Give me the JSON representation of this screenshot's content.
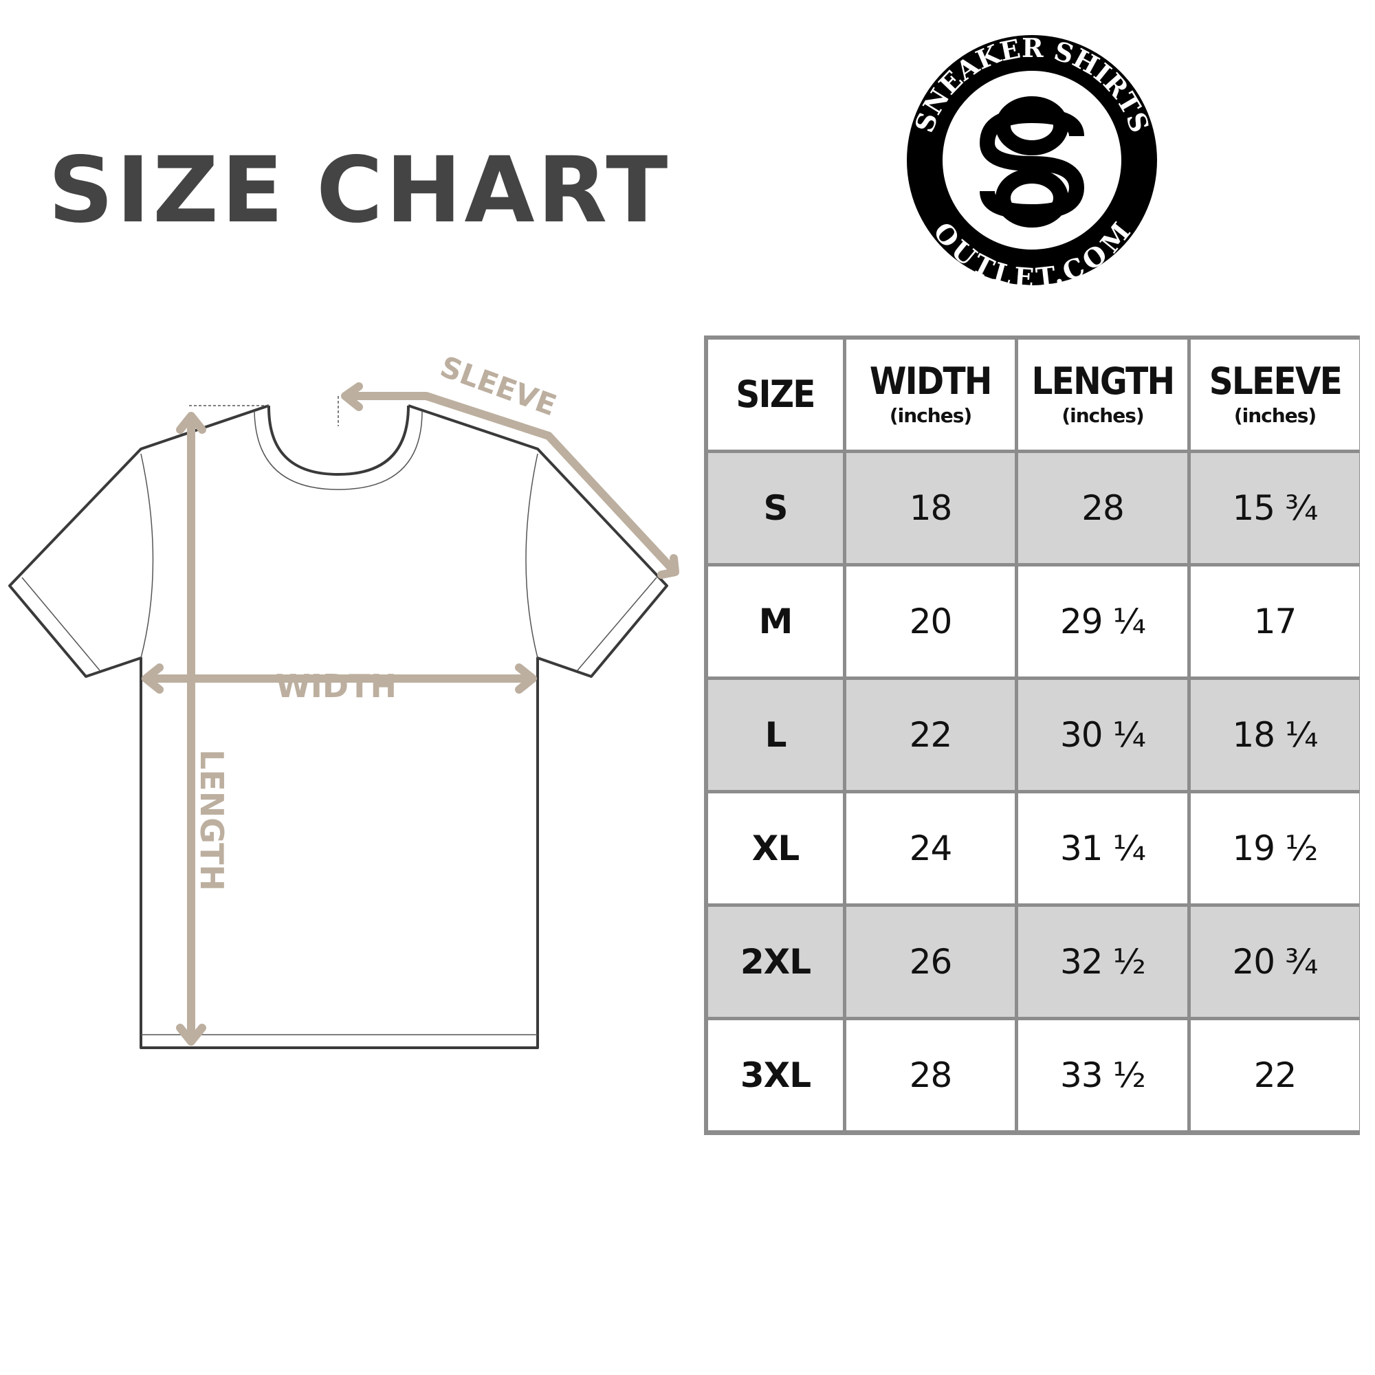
{
  "title": {
    "word1": "SIZE",
    "word2": "CHART"
  },
  "logo": {
    "top_text": "SNEAKER SHIRTS",
    "bottom_text": "OUTLET.COM",
    "monogram": "SO"
  },
  "diagram": {
    "sleeve_label": "SLEEVE",
    "width_label": "WIDTH",
    "length_label": "LENGTH",
    "arrow_color": "#bcaf9f",
    "outline_color": "#3a3a3a"
  },
  "table": {
    "headers": [
      {
        "label": "SIZE",
        "unit": ""
      },
      {
        "label": "WIDTH",
        "unit": "(inches)"
      },
      {
        "label": "LENGTH",
        "unit": "(inches)"
      },
      {
        "label": "SLEEVE",
        "unit": "(inches)"
      }
    ],
    "rows": [
      [
        "S",
        "18",
        "28",
        "15 ¾"
      ],
      [
        "M",
        "20",
        "29 ¼",
        "17"
      ],
      [
        "L",
        "22",
        "30 ¼",
        "18 ¼"
      ],
      [
        "XL",
        "24",
        "31 ¼",
        "19 ½"
      ],
      [
        "2XL",
        "26",
        "32 ½",
        "20 ¾"
      ],
      [
        "3XL",
        "28",
        "33 ½",
        "22"
      ]
    ],
    "border_color": "#8c8c8c",
    "shade_color": "#d4d4d4"
  }
}
